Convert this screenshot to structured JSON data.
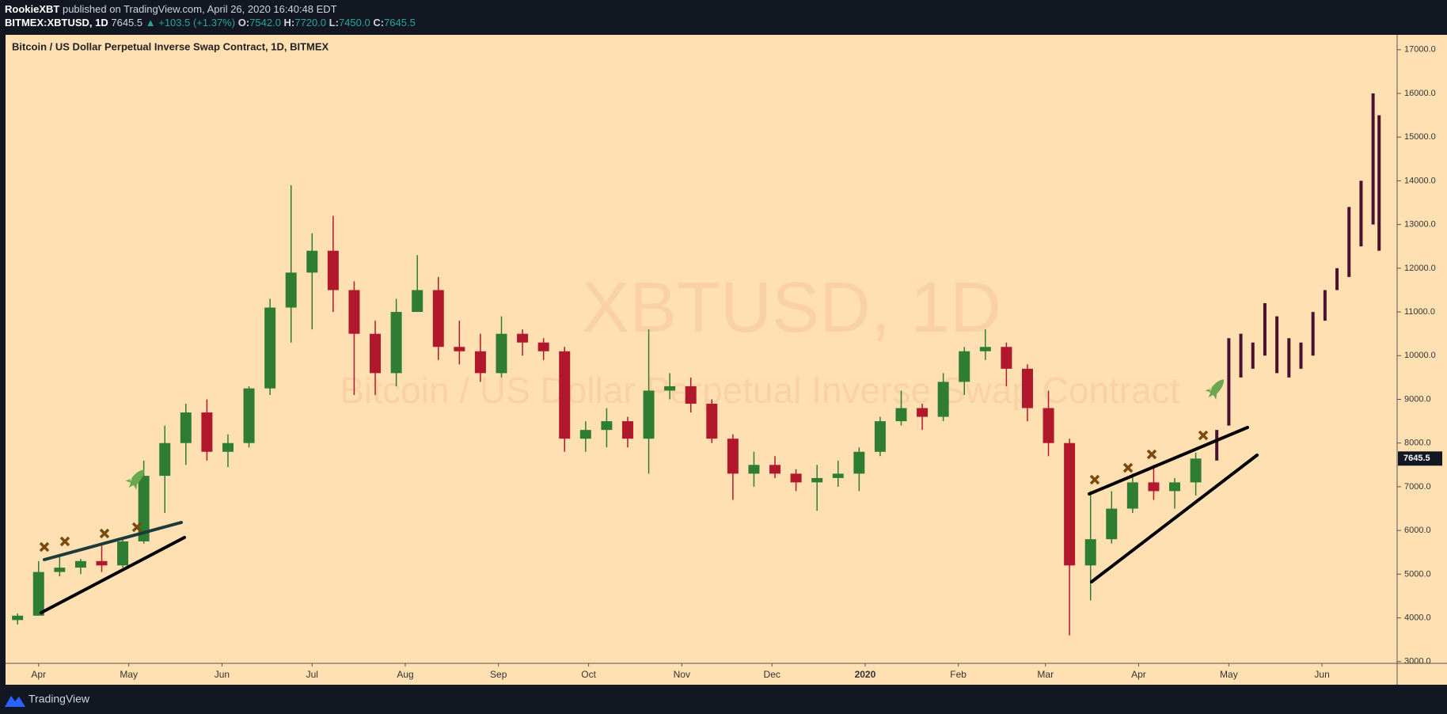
{
  "header": {
    "author": "RookieXBT",
    "published": "published on TradingView.com, April 26, 2020 16:40:48 EDT",
    "symbol": "BITMEX:XBTUSD, 1D",
    "price": "7645.5",
    "change": "▲ +103.5 (+1.37%)",
    "open_label": "O:",
    "open": "7542.0",
    "high_label": "H:",
    "high": "7720.0",
    "low_label": "L:",
    "low": "7450.0",
    "close_label": "C:",
    "close": "7645.5"
  },
  "footer": {
    "brand": "TradingView"
  },
  "chart_data": {
    "type": "candlestick",
    "title": "Bitcoin / US Dollar Perpetual Inverse Swap Contract, 1D, BITMEX",
    "watermark": "XBTUSD, 1D",
    "watermark_subtitle": "Bitcoin / US Dollar Perpetual Inverse Swap Contract",
    "up_color": "#2e7d32",
    "down_color": "#b2182b",
    "projection_color": "#4a1030",
    "x": [
      -7,
      0,
      7,
      14,
      21,
      28,
      35,
      42,
      49,
      56,
      63,
      70,
      77,
      84,
      91,
      98,
      105,
      112,
      119,
      126,
      133,
      140,
      147,
      154,
      161,
      168,
      175,
      182,
      189,
      196,
      203,
      210,
      217,
      224,
      231,
      238,
      245,
      252,
      259,
      266,
      273,
      280,
      287,
      294,
      301,
      308,
      315,
      322,
      329,
      336,
      343,
      350,
      357,
      364,
      371,
      378,
      385
    ],
    "open": [
      3950,
      4050,
      5050,
      5150,
      5300,
      5200,
      5750,
      7250,
      8000,
      8700,
      7800,
      8000,
      9250,
      11100,
      11900,
      12400,
      11500,
      10500,
      9600,
      11000,
      11500,
      10200,
      10100,
      9600,
      10500,
      10300,
      10100,
      8100,
      8300,
      8500,
      8100,
      9200,
      9300,
      8900,
      8100,
      7300,
      7500,
      7300,
      7100,
      7200,
      7300,
      7800,
      8500,
      8800,
      8600,
      9400,
      10100,
      10200,
      9700,
      8800,
      8000,
      5200,
      5800,
      6500,
      7100,
      6900,
      7100
    ],
    "high": [
      4100,
      5300,
      5400,
      5350,
      5650,
      5800,
      7600,
      8400,
      8900,
      9000,
      8200,
      9300,
      11300,
      13900,
      12800,
      13200,
      11700,
      10800,
      11300,
      12300,
      11800,
      10800,
      10500,
      10900,
      10600,
      10400,
      10200,
      8500,
      8800,
      8600,
      10600,
      9600,
      9500,
      9000,
      8200,
      7800,
      7700,
      7400,
      7500,
      7600,
      7900,
      8600,
      9200,
      8900,
      9600,
      10200,
      10600,
      10300,
      9800,
      9200,
      8100,
      6900,
      6900,
      7300,
      7500,
      7200,
      7780
    ],
    "low": [
      3850,
      4050,
      4950,
      5000,
      5050,
      5150,
      5700,
      6400,
      7500,
      7600,
      7450,
      7900,
      9100,
      10300,
      10600,
      11000,
      9100,
      9100,
      9300,
      11000,
      9900,
      9800,
      9400,
      9500,
      10000,
      9900,
      7800,
      7800,
      7900,
      7900,
      7300,
      9000,
      8700,
      8000,
      6700,
      7000,
      7200,
      6900,
      6450,
      7000,
      6900,
      7700,
      8400,
      8300,
      8500,
      9100,
      9900,
      9300,
      8500,
      7700,
      3600,
      4400,
      5700,
      6400,
      6700,
      6500,
      6800
    ],
    "close": [
      4050,
      5050,
      5150,
      5300,
      5200,
      5750,
      7250,
      8000,
      8700,
      7800,
      8000,
      9250,
      11100,
      11900,
      12400,
      11500,
      10500,
      9600,
      11000,
      11500,
      10200,
      10100,
      9600,
      10500,
      10300,
      10100,
      8100,
      8300,
      8500,
      8100,
      9200,
      9300,
      8900,
      8100,
      7300,
      7500,
      7300,
      7100,
      7200,
      7300,
      7800,
      8500,
      8800,
      8600,
      9400,
      10100,
      10200,
      9700,
      8800,
      8000,
      5200,
      5800,
      6500,
      7100,
      6900,
      7100,
      7645.5
    ],
    "projection": {
      "x": [
        392,
        396,
        400,
        404,
        408,
        412,
        416,
        420,
        424,
        428,
        432,
        436,
        440,
        444,
        446
      ],
      "low": [
        7600,
        8400,
        9500,
        9700,
        10000,
        9600,
        9500,
        9700,
        10000,
        10800,
        11500,
        11800,
        12500,
        13000,
        12400
      ],
      "high": [
        8300,
        10400,
        10500,
        10300,
        11200,
        10900,
        10400,
        10300,
        11000,
        11500,
        12000,
        13400,
        14000,
        16000,
        15500
      ]
    },
    "xlim": [
      -11,
      452
    ],
    "xticks": [
      {
        "value": 0,
        "label": "Apr"
      },
      {
        "value": 30,
        "label": "May"
      },
      {
        "value": 61,
        "label": "Jun"
      },
      {
        "value": 91,
        "label": "Jul"
      },
      {
        "value": 122,
        "label": "Aug"
      },
      {
        "value": 153,
        "label": "Sep"
      },
      {
        "value": 183,
        "label": "Oct"
      },
      {
        "value": 214,
        "label": "Nov"
      },
      {
        "value": 244,
        "label": "Dec"
      },
      {
        "value": 275,
        "label": "2020"
      },
      {
        "value": 306,
        "label": "Feb"
      },
      {
        "value": 335,
        "label": "Mar"
      },
      {
        "value": 366,
        "label": "Apr"
      },
      {
        "value": 396,
        "label": "May"
      },
      {
        "value": 427,
        "label": "Jun"
      }
    ],
    "ylim": [
      2960,
      17340
    ],
    "yticks": [
      {
        "value": 3000,
        "label": "3000.0"
      },
      {
        "value": 4000,
        "label": "4000.0"
      },
      {
        "value": 5000,
        "label": "5000.0"
      },
      {
        "value": 6000,
        "label": "6000.0"
      },
      {
        "value": 7000,
        "label": "7000.0"
      },
      {
        "value": 8000,
        "label": "8000.0"
      },
      {
        "value": 9000,
        "label": "9000.0"
      },
      {
        "value": 10000,
        "label": "10000.0"
      },
      {
        "value": 11000,
        "label": "11000.0"
      },
      {
        "value": 12000,
        "label": "12000.0"
      },
      {
        "value": 13000,
        "label": "13000.0"
      },
      {
        "value": 14000,
        "label": "14000.0"
      },
      {
        "value": 15000,
        "label": "15000.0"
      },
      {
        "value": 16000,
        "label": "16000.0"
      },
      {
        "value": 17000,
        "label": "17000.0"
      }
    ]
  }
}
